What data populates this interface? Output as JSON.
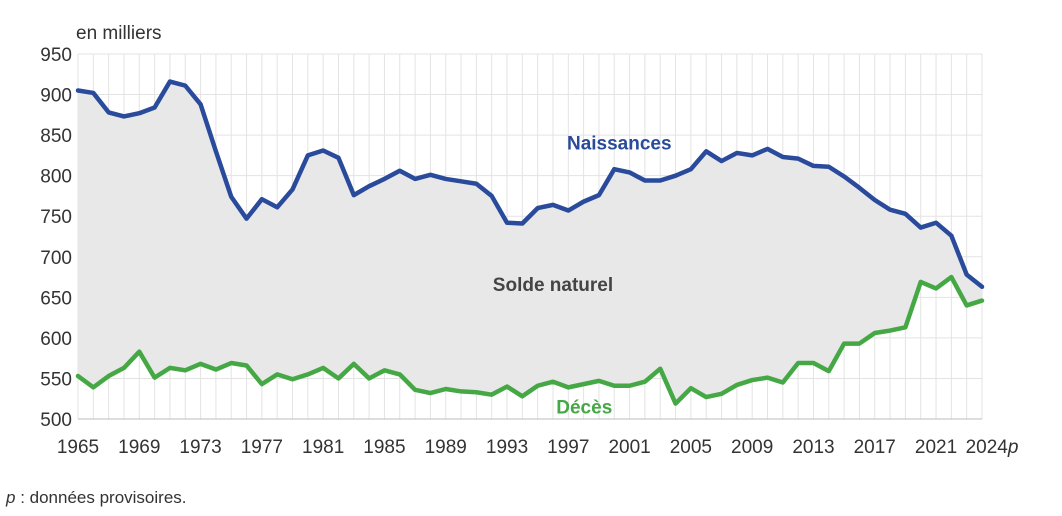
{
  "chart_data": {
    "type": "line",
    "unit_label": "en milliers",
    "x": [
      1965,
      1966,
      1967,
      1968,
      1969,
      1970,
      1971,
      1972,
      1973,
      1974,
      1975,
      1976,
      1977,
      1978,
      1979,
      1980,
      1981,
      1982,
      1983,
      1984,
      1985,
      1986,
      1987,
      1988,
      1989,
      1990,
      1991,
      1992,
      1993,
      1994,
      1995,
      1996,
      1997,
      1998,
      1999,
      2000,
      2001,
      2002,
      2003,
      2004,
      2005,
      2006,
      2007,
      2008,
      2009,
      2010,
      2011,
      2012,
      2013,
      2014,
      2015,
      2016,
      2017,
      2018,
      2019,
      2020,
      2021,
      2022,
      2023,
      2024
    ],
    "x_tick_values": [
      1965,
      1969,
      1973,
      1977,
      1981,
      1985,
      1989,
      1993,
      1997,
      2001,
      2005,
      2009,
      2013,
      2017,
      2021,
      2024
    ],
    "x_tick_labels": [
      "1965",
      "1969",
      "1973",
      "1977",
      "1981",
      "1985",
      "1989",
      "1993",
      "1997",
      "2001",
      "2005",
      "2009",
      "2013",
      "2017",
      "2021",
      "2024"
    ],
    "x_tick_suffix": "p",
    "y_ticks": [
      500,
      550,
      600,
      650,
      700,
      750,
      800,
      850,
      900,
      950
    ],
    "ylim": [
      500,
      950
    ],
    "xlim": [
      1965,
      2024
    ],
    "grid": true,
    "series": [
      {
        "name": "Naissances",
        "color": "#2a4b9b",
        "values": [
          905,
          902,
          878,
          873,
          877,
          884,
          916,
          911,
          888,
          830,
          774,
          747,
          771,
          761,
          783,
          825,
          831,
          822,
          776,
          787,
          796,
          806,
          796,
          801,
          796,
          793,
          790,
          775,
          742,
          741,
          760,
          764,
          757,
          768,
          776,
          808,
          804,
          794,
          794,
          800,
          808,
          830,
          818,
          828,
          825,
          833,
          823,
          821,
          812,
          811,
          799,
          785,
          770,
          758,
          753,
          736,
          742,
          726,
          678,
          663
        ]
      },
      {
        "name": "Décès",
        "color": "#45a845",
        "values": [
          553,
          539,
          553,
          563,
          583,
          551,
          563,
          560,
          568,
          561,
          569,
          566,
          543,
          555,
          549,
          555,
          563,
          550,
          568,
          550,
          560,
          555,
          536,
          532,
          537,
          534,
          533,
          530,
          540,
          528,
          541,
          546,
          539,
          543,
          547,
          541,
          541,
          546,
          562,
          519,
          538,
          527,
          531,
          542,
          548,
          551,
          545,
          569,
          569,
          559,
          593,
          593,
          606,
          609,
          613,
          669,
          661,
          675,
          640,
          646
        ]
      }
    ],
    "area_label": "Solde naturel",
    "area_color": "#e8e8e8"
  },
  "footnote": {
    "symbol": "p",
    "text": " : données provisoires."
  }
}
